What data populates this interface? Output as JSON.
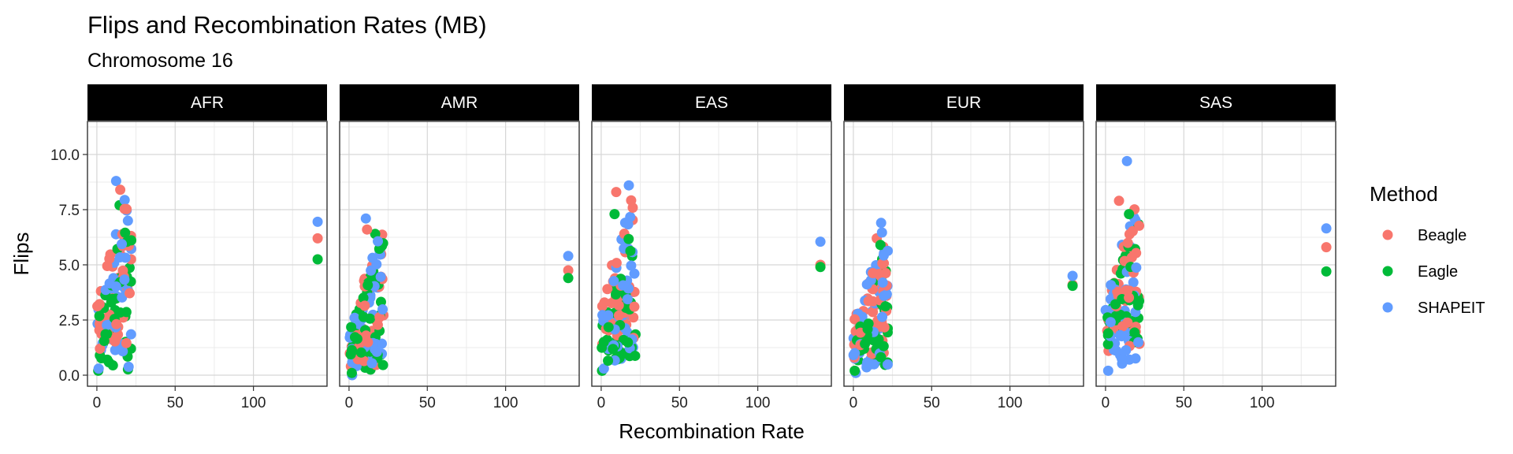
{
  "chart_data": {
    "type": "scatter",
    "title": "Flips and Recombination Rates (MB)",
    "subtitle": "Chromosome 16",
    "xlabel": "Recombination Rate",
    "ylabel": "Flips",
    "xlim": [
      -6,
      147
    ],
    "ylim": [
      -0.5,
      11.5
    ],
    "x_ticks": [
      0,
      50,
      100
    ],
    "y_ticks": [
      0.0,
      2.5,
      5.0,
      7.5,
      10.0
    ],
    "y_tick_labels": [
      "0.0",
      "2.5",
      "5.0",
      "7.5",
      "10.0"
    ],
    "grid": true,
    "legend": {
      "title": "Method",
      "position": "right",
      "entries": [
        {
          "label": "Beagle",
          "color": "#F8766D"
        },
        {
          "label": "Eagle",
          "color": "#00BA38"
        },
        {
          "label": "SHAPEIT",
          "color": "#619CFF"
        }
      ]
    },
    "panels": [
      {
        "label": "AFR",
        "outlier": {
          "x": 141,
          "Beagle": 6.2,
          "Eagle": 5.25,
          "SHAPEIT": 6.95
        },
        "cluster": {
          "Beagle": {
            "y_min": 1.2,
            "y_max": 8.4
          },
          "Eagle": {
            "y_min": 0.2,
            "y_max": 7.7
          },
          "SHAPEIT": {
            "y_min": 0.3,
            "y_max": 8.8
          }
        }
      },
      {
        "label": "AMR",
        "outlier": {
          "x": 140,
          "Beagle": 4.75,
          "Eagle": 4.4,
          "SHAPEIT": 5.4
        },
        "cluster": {
          "Beagle": {
            "y_min": 0.4,
            "y_max": 6.6
          },
          "Eagle": {
            "y_min": 0.1,
            "y_max": 6.4
          },
          "SHAPEIT": {
            "y_min": 0.0,
            "y_max": 7.1
          }
        }
      },
      {
        "label": "EAS",
        "outlier": {
          "x": 140,
          "Beagle": 5.0,
          "Eagle": 4.9,
          "SHAPEIT": 6.05
        },
        "cluster": {
          "Beagle": {
            "y_min": 1.4,
            "y_max": 8.3
          },
          "Eagle": {
            "y_min": 0.2,
            "y_max": 7.3
          },
          "SHAPEIT": {
            "y_min": 0.3,
            "y_max": 8.6
          }
        }
      },
      {
        "label": "EUR",
        "outlier": {
          "x": 140,
          "Beagle": 4.1,
          "Eagle": 4.05,
          "SHAPEIT": 4.5
        },
        "cluster": {
          "Beagle": {
            "y_min": 0.8,
            "y_max": 6.2
          },
          "Eagle": {
            "y_min": 0.2,
            "y_max": 5.9
          },
          "SHAPEIT": {
            "y_min": 0.1,
            "y_max": 6.9
          }
        }
      },
      {
        "label": "SAS",
        "outlier": {
          "x": 141,
          "Beagle": 5.8,
          "Eagle": 4.7,
          "SHAPEIT": 6.65
        },
        "cluster": {
          "Beagle": {
            "y_min": 1.1,
            "y_max": 7.9
          },
          "Eagle": {
            "y_min": 1.4,
            "y_max": 7.3
          },
          "SHAPEIT": {
            "y_min": 0.2,
            "y_max": 9.7
          }
        }
      }
    ]
  }
}
